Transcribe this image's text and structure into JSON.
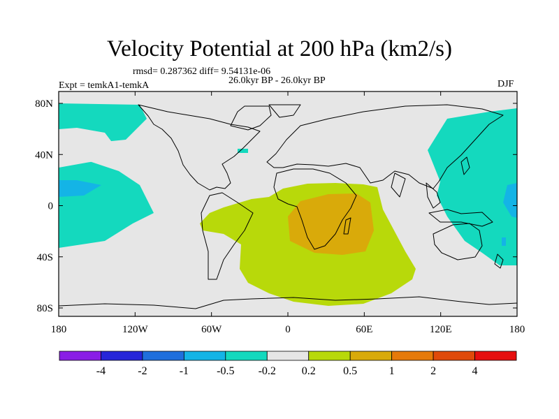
{
  "title": "Velocity Potential at 200 hPa (km2/s)",
  "stats": "rmsd= 0.287362 diff= 9.54131e-06",
  "experiment": "Expt = temkA1-temkA",
  "period": "26.0kyr BP - 26.0kyr BP",
  "season": "DJF",
  "lat_ticks": [
    {
      "value": 80,
      "label": "80N"
    },
    {
      "value": 40,
      "label": "40N"
    },
    {
      "value": 0,
      "label": "0"
    },
    {
      "value": -40,
      "label": "40S"
    },
    {
      "value": -80,
      "label": "80S"
    }
  ],
  "lon_ticks": [
    {
      "value": -180,
      "label": "180"
    },
    {
      "value": -120,
      "label": "120W"
    },
    {
      "value": -60,
      "label": "60W"
    },
    {
      "value": 0,
      "label": "0"
    },
    {
      "value": 60,
      "label": "60E"
    },
    {
      "value": 120,
      "label": "120E"
    },
    {
      "value": 180,
      "label": "180"
    }
  ],
  "colorbar": {
    "colors": [
      "#8a1ee6",
      "#2626d9",
      "#1f6fdc",
      "#14b4e6",
      "#14d9be",
      "#e6e6e6",
      "#b8d90a",
      "#d9aa0a",
      "#e67a0a",
      "#e04a0a",
      "#e60f0f"
    ],
    "labels": [
      "-4",
      "-2",
      "-1",
      "-0.5",
      "-0.2",
      "0.2",
      "0.5",
      "1",
      "2",
      "4"
    ]
  }
}
